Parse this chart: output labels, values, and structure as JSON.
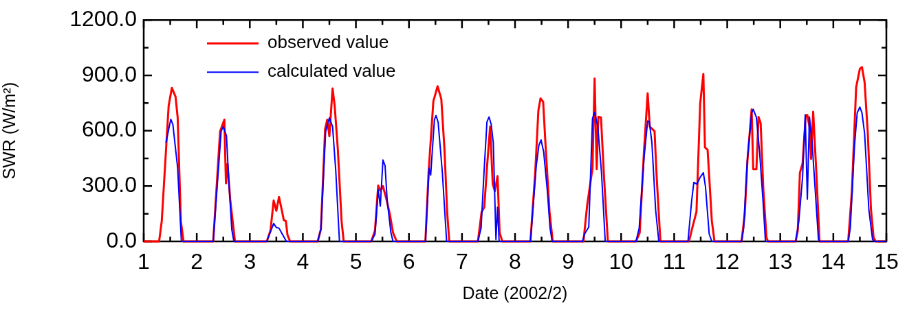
{
  "chart_data": {
    "type": "line",
    "xlabel": "Date (2002/2)",
    "ylabel": "SWR (W/m²)",
    "xlim": [
      1,
      15
    ],
    "ylim": [
      0,
      1200
    ],
    "xticks": [
      1,
      {
        "value": 1.5,
        "label": null
      },
      2,
      {
        "value": 2.5,
        "label": null
      },
      3,
      {
        "value": 3.5,
        "label": null
      },
      4,
      {
        "value": 4.5,
        "label": null
      },
      5,
      {
        "value": 5.5,
        "label": null
      },
      6,
      {
        "value": 6.5,
        "label": null
      },
      7,
      {
        "value": 7.5,
        "label": null
      },
      8,
      {
        "value": 8.5,
        "label": null
      },
      9,
      {
        "value": 9.5,
        "label": null
      },
      10,
      {
        "value": 10.5,
        "label": null
      },
      11,
      {
        "value": 11.5,
        "label": null
      },
      12,
      {
        "value": 12.5,
        "label": null
      },
      13,
      {
        "value": 13.5,
        "label": null
      },
      14,
      {
        "value": 14.5,
        "label": null
      },
      15
    ],
    "yticks": [
      {
        "value": 0,
        "label": "0.0"
      },
      {
        "value": 150,
        "label": null
      },
      {
        "value": 300,
        "label": "300.0"
      },
      {
        "value": 450,
        "label": null
      },
      {
        "value": 600,
        "label": "600.0"
      },
      {
        "value": 750,
        "label": null
      },
      {
        "value": 900,
        "label": "900.0"
      },
      {
        "value": 1050,
        "label": null
      },
      {
        "value": 1200,
        "label": "1200.0"
      }
    ],
    "grid": false,
    "legend": "top left",
    "marker": "none",
    "line_style": "solid",
    "series": [
      {
        "name": "observed value",
        "color": "#ff0000",
        "x": [
          1,
          1.29,
          1.34,
          1.47,
          1.53,
          1.6,
          1.64,
          1.7,
          1.75,
          2.31,
          2.44,
          2.52,
          2.55,
          2.58,
          2.63,
          2.72,
          3.32,
          3.39,
          3.45,
          3.5,
          3.55,
          3.61,
          3.64,
          3.68,
          3.71,
          3.76,
          4.28,
          4.34,
          4.42,
          4.46,
          4.5,
          4.56,
          4.6,
          4.66,
          4.73,
          4.77,
          5.29,
          5.36,
          5.42,
          5.46,
          5.51,
          5.57,
          5.64,
          5.7,
          5.77,
          6.31,
          6.37,
          6.46,
          6.54,
          6.61,
          6.67,
          6.72,
          6.76,
          7.3,
          7.37,
          7.42,
          7.47,
          7.53,
          7.58,
          7.62,
          7.67,
          7.71,
          7.76,
          8.29,
          8.38,
          8.44,
          8.48,
          8.53,
          8.58,
          8.65,
          8.71,
          9.29,
          9.36,
          9.46,
          9.5,
          9.54,
          9.57,
          9.62,
          9.68,
          9.75,
          10.28,
          10.35,
          10.43,
          10.5,
          10.54,
          10.63,
          10.67,
          10.74,
          11.28,
          11.34,
          11.42,
          11.49,
          11.55,
          11.58,
          11.63,
          11.71,
          11.76,
          12.27,
          12.33,
          12.38,
          12.46,
          12.49,
          12.55,
          12.59,
          12.63,
          12.68,
          12.74,
          12.77,
          13.29,
          13.33,
          13.37,
          13.42,
          13.48,
          13.51,
          13.55,
          13.58,
          13.62,
          13.68,
          13.74,
          14.28,
          14.35,
          14.43,
          14.5,
          14.54,
          14.59,
          14.65,
          14.71,
          14.76,
          14.8,
          15
        ],
        "values": [
          0,
          0,
          110,
          735,
          832,
          785,
          672,
          110,
          0,
          0,
          597,
          660,
          315,
          420,
          229,
          0,
          0,
          60,
          222,
          166,
          241,
          160,
          116,
          110,
          35,
          0,
          0,
          66,
          610,
          660,
          570,
          829,
          735,
          497,
          110,
          0,
          0,
          60,
          303,
          275,
          300,
          235,
          147,
          47,
          0,
          0,
          373,
          760,
          841,
          772,
          497,
          160,
          0,
          0,
          160,
          185,
          397,
          622,
          310,
          272,
          354,
          47,
          0,
          0,
          372,
          710,
          775,
          757,
          497,
          160,
          0,
          0,
          197,
          397,
          883,
          391,
          675,
          672,
          335,
          0,
          0,
          47,
          485,
          803,
          622,
          597,
          348,
          0,
          0,
          72,
          160,
          747,
          908,
          510,
          497,
          110,
          0,
          0,
          147,
          435,
          716,
          391,
          391,
          675,
          641,
          285,
          20,
          0,
          0,
          60,
          372,
          422,
          685,
          685,
          622,
          447,
          703,
          372,
          0,
          0,
          272,
          835,
          935,
          945,
          862,
          585,
          172,
          20,
          0,
          0
        ]
      },
      {
        "name": "calculated value",
        "color": "#0000ff",
        "x": [
          1.42,
          1.51,
          1.55,
          1.64,
          1.71,
          2.31,
          2.46,
          2.5,
          2.56,
          2.6,
          2.66,
          2.7,
          3.32,
          3.45,
          3.5,
          3.55,
          3.61,
          3.69,
          4.28,
          4.34,
          4.43,
          4.5,
          4.56,
          4.62,
          4.69,
          5.29,
          5.36,
          5.42,
          5.46,
          5.51,
          5.55,
          5.59,
          5.66,
          5.7,
          6.31,
          6.38,
          6.41,
          6.48,
          6.51,
          6.55,
          6.63,
          6.71,
          7.3,
          7.36,
          7.41,
          7.47,
          7.51,
          7.55,
          7.59,
          7.64,
          7.67,
          7.7,
          8.29,
          8.4,
          8.45,
          8.49,
          8.54,
          8.61,
          8.66,
          8.7,
          9.27,
          9.31,
          9.39,
          9.46,
          9.5,
          9.56,
          9.63,
          9.7,
          10.28,
          10.34,
          10.43,
          10.5,
          10.53,
          10.58,
          10.65,
          10.71,
          11.26,
          11.33,
          11.37,
          11.43,
          11.49,
          11.55,
          11.59,
          11.66,
          11.71,
          12.27,
          12.31,
          12.38,
          12.46,
          12.49,
          12.55,
          12.61,
          12.68,
          12.72,
          13.29,
          13.35,
          13.42,
          13.47,
          13.51,
          13.55,
          13.6,
          13.66,
          13.72,
          13.74,
          14.28,
          14.32,
          14.4,
          14.45,
          14.5,
          14.54,
          14.59,
          14.67,
          14.74,
          14.78,
          15
        ],
        "values": [
          535,
          662,
          633,
          397,
          0,
          0,
          597,
          622,
          572,
          348,
          65,
          0,
          0,
          97,
          75,
          72,
          41,
          0,
          0,
          66,
          597,
          670,
          622,
          385,
          0,
          0,
          40,
          280,
          191,
          441,
          410,
          222,
          47,
          0,
          0,
          397,
          360,
          660,
          682,
          647,
          372,
          0,
          0,
          72,
          348,
          647,
          675,
          635,
          535,
          10,
          185,
          0,
          0,
          410,
          522,
          550,
          485,
          272,
          72,
          0,
          0,
          40,
          78,
          666,
          700,
          622,
          372,
          0,
          0,
          72,
          447,
          653,
          650,
          535,
          172,
          0,
          0,
          222,
          320,
          310,
          348,
          372,
          297,
          40,
          0,
          0,
          72,
          447,
          697,
          716,
          672,
          485,
          197,
          0,
          0,
          110,
          348,
          685,
          229,
          675,
          535,
          272,
          10,
          0,
          0,
          72,
          522,
          697,
          728,
          697,
          585,
          172,
          10,
          0,
          0
        ]
      }
    ]
  }
}
